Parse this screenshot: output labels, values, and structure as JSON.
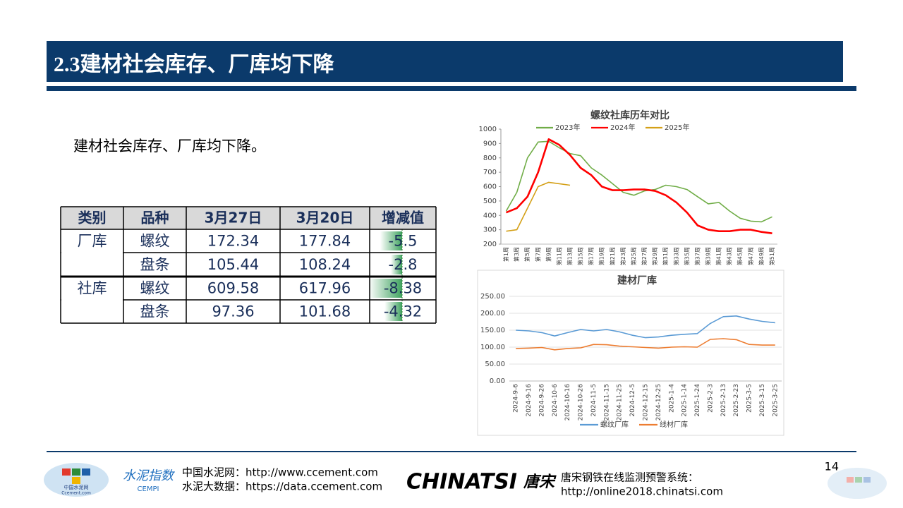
{
  "header": {
    "title": "2.3建材社会库存、厂库均下降"
  },
  "body_text": "建材社会库存、厂库均下降。",
  "table": {
    "columns": [
      "类别",
      "品种",
      "3月27日",
      "3月20日",
      "增减值"
    ],
    "rows": [
      [
        "厂库",
        "螺纹",
        172.34,
        177.84,
        -5.5
      ],
      [
        null,
        "盘条",
        105.44,
        108.24,
        -2.8
      ],
      [
        "社库",
        "螺纹",
        609.58,
        617.96,
        -8.38
      ],
      [
        null,
        "盘条",
        97.36,
        101.68,
        -4.32
      ]
    ]
  },
  "chart_data": [
    {
      "type": "line",
      "title": "螺纹社库历年对比",
      "grid": false,
      "categories": [
        "第1周",
        "第3周",
        "第5周",
        "第7周",
        "第9周",
        "第11周",
        "第13周",
        "第15周",
        "第17周",
        "第19周",
        "第21周",
        "第23周",
        "第25周",
        "第27周",
        "第29周",
        "第31周",
        "第33周",
        "第35周",
        "第37周",
        "第39周",
        "第41周",
        "第43周",
        "第45周",
        "第47周",
        "第49周",
        "第51周"
      ],
      "ylim": [
        200,
        1000
      ],
      "yticks": [
        200,
        300,
        400,
        500,
        600,
        700,
        800,
        900,
        1000
      ],
      "series": [
        {
          "name": "2023年",
          "color": "#70ad47",
          "values": [
            430,
            560,
            800,
            910,
            915,
            870,
            830,
            815,
            730,
            680,
            620,
            560,
            540,
            570,
            580,
            610,
            600,
            580,
            530,
            480,
            490,
            430,
            380,
            360,
            355,
            390
          ]
        },
        {
          "name": "2024年",
          "color": "#ff0000",
          "values": [
            420,
            450,
            530,
            700,
            930,
            890,
            820,
            730,
            680,
            600,
            575,
            575,
            580,
            580,
            570,
            540,
            490,
            420,
            330,
            300,
            290,
            290,
            300,
            300,
            285,
            275
          ]
        },
        {
          "name": "2025年",
          "color": "#d4a017",
          "values": [
            290,
            300,
            450,
            600,
            630,
            620,
            610,
            null,
            null,
            null,
            null,
            null,
            null,
            null,
            null,
            null,
            null,
            null,
            null,
            null,
            null,
            null,
            null,
            null,
            null,
            null
          ]
        }
      ]
    },
    {
      "type": "line",
      "title": "建材厂库",
      "grid": true,
      "categories": [
        "2024-9-6",
        "2024-9-16",
        "2024-9-26",
        "2024-10-6",
        "2024-10-16",
        "2024-10-26",
        "2024-11-5",
        "2024-11-15",
        "2024-11-25",
        "2024-12-5",
        "2024-12-15",
        "2024-12-25",
        "2025-1-4",
        "2025-1-14",
        "2025-1-24",
        "2025-2-3",
        "2025-2-13",
        "2025-2-23",
        "2025-3-5",
        "2025-3-15",
        "2025-3-25"
      ],
      "ylim": [
        0,
        250
      ],
      "yticks": [
        {
          "value": 0,
          "label": "0.00"
        },
        {
          "value": 50,
          "label": "50.00"
        },
        {
          "value": 100,
          "label": "100.00"
        },
        {
          "value": 150,
          "label": "150.00"
        },
        {
          "value": 200,
          "label": "200.00"
        },
        {
          "value": 250,
          "label": "250.00"
        }
      ],
      "series": [
        {
          "name": "螺纹厂库",
          "color": "#5b9bd5",
          "values": [
            150,
            148,
            143,
            133,
            143,
            152,
            148,
            152,
            145,
            135,
            128,
            130,
            135,
            138,
            140,
            170,
            190,
            192,
            183,
            176,
            172
          ]
        },
        {
          "name": "线材厂库",
          "color": "#ed7d31",
          "values": [
            96,
            97,
            99,
            92,
            96,
            98,
            108,
            107,
            103,
            101,
            99,
            97,
            100,
            101,
            100,
            123,
            125,
            122,
            108,
            106,
            106
          ]
        }
      ]
    }
  ],
  "footer": {
    "logo_left": "中国水泥网",
    "logo_left_sub": "Ccement.com",
    "cempi_cn": "水泥指数",
    "cempi_en": "CEMPI",
    "line1": "中国水泥网：http://www.ccement.com",
    "line2": "水泥大数据：https://data.ccement.com",
    "chinatsi": "CHINATSI",
    "chinatsi_cn": "唐宋",
    "system": "唐宋钢铁在线监测预警系统：",
    "system_url": "http://online2018.chinatsi.com",
    "page_number": "14"
  }
}
